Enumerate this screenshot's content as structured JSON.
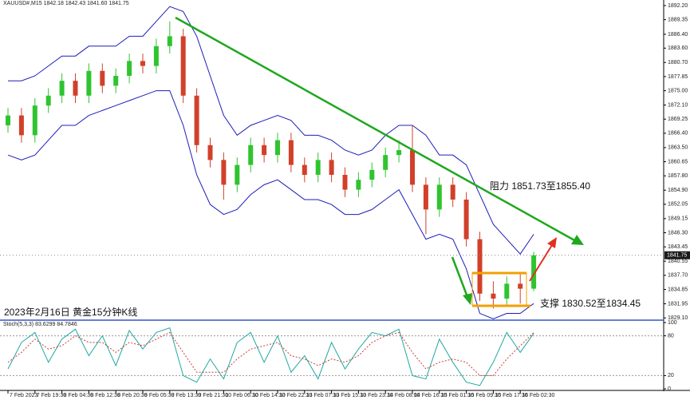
{
  "chart_data": [
    {
      "type": "candlestick",
      "title": "XAUUSD#,M15 1842.18 1842.43 1841.60 1841.75",
      "annotations": [
        "阻力 1851.73至1855.40",
        "支撑 1830.52至1834.45",
        "2023年2月16日 黄金15分钟K线"
      ],
      "open": [
        1868,
        1870,
        1866,
        1872,
        1874,
        1877,
        1874,
        1879,
        1876,
        1878,
        1881,
        1880,
        1884,
        1886,
        1874,
        1864,
        1861,
        1856,
        1860,
        1864,
        1862,
        1865,
        1860,
        1858,
        1861,
        1858,
        1855,
        1857,
        1859,
        1862,
        1863,
        1856,
        1851,
        1856,
        1853,
        1845,
        1834,
        1833,
        1836,
        1835
      ],
      "high": [
        1871.5,
        1871.5,
        1873.5,
        1875.5,
        1878.5,
        1878.5,
        1880.5,
        1880.5,
        1879.5,
        1882.5,
        1882.5,
        1885.5,
        1889,
        1887.5,
        1875.5,
        1865.5,
        1862.5,
        1861.5,
        1865.5,
        1865.5,
        1866.5,
        1866.5,
        1861.5,
        1862.5,
        1862.5,
        1859.5,
        1858.5,
        1860.5,
        1863.5,
        1865,
        1868,
        1857.5,
        1857.5,
        1857.5,
        1854.5,
        1846.5,
        1836.5,
        1837.5,
        1838,
        1842.43
      ],
      "low": [
        1866.5,
        1864.5,
        1864.5,
        1870.5,
        1872.5,
        1872.5,
        1872.5,
        1874.5,
        1874.5,
        1876.5,
        1878.5,
        1878.5,
        1882.5,
        1872.5,
        1862.5,
        1859.5,
        1853,
        1854.5,
        1858.5,
        1860.5,
        1860.5,
        1858.5,
        1856.5,
        1856.5,
        1856.5,
        1853.5,
        1853.5,
        1855.5,
        1857.5,
        1860.5,
        1854.5,
        1846,
        1849.5,
        1851.5,
        1843.5,
        1832.5,
        1831,
        1831.5,
        1832,
        1834.5
      ],
      "close": [
        1870,
        1866,
        1872,
        1874,
        1877,
        1874,
        1879,
        1876,
        1878,
        1881,
        1880,
        1884,
        1886,
        1874,
        1864,
        1861,
        1856,
        1860,
        1864,
        1862,
        1865,
        1860,
        1858,
        1861,
        1858,
        1855,
        1857,
        1859,
        1862,
        1863,
        1856,
        1851,
        1856,
        1853,
        1845,
        1834,
        1833,
        1836,
        1835,
        1841.75
      ],
      "band_upper": [
        1877,
        1877,
        1878,
        1880,
        1882,
        1882,
        1884,
        1884,
        1884,
        1886,
        1886,
        1889,
        1892,
        1891,
        1886,
        1878,
        1870,
        1866,
        1868,
        1869,
        1870,
        1869,
        1866,
        1866,
        1865,
        1863,
        1862,
        1863,
        1866,
        1868,
        1868,
        1866,
        1862,
        1862,
        1860,
        1854,
        1848,
        1845,
        1842,
        1846
      ],
      "band_lower": [
        1862,
        1861,
        1862,
        1865,
        1868,
        1868,
        1870,
        1871,
        1872,
        1873,
        1874,
        1875,
        1875,
        1868,
        1858,
        1852,
        1850,
        1851,
        1854,
        1856,
        1857,
        1855,
        1853,
        1853,
        1852,
        1850,
        1850,
        1851,
        1853,
        1855,
        1850,
        1845,
        1846,
        1845,
        1839,
        1830,
        1828.9,
        1830,
        1830,
        1832
      ],
      "up_color": "#2fc42f",
      "down_color": "#d2402a",
      "band_color": "#1c1cb8",
      "ylim": [
        1828.8,
        1893.0
      ],
      "yticks": [
        {
          "value": 1892.2,
          "label": "1892.20"
        },
        1889.35,
        {
          "value": 1886.4,
          "label": "1886.40"
        },
        {
          "value": 1883.6,
          "label": "1883.60"
        },
        {
          "value": 1880.7,
          "label": "1880.70"
        },
        1877.85,
        {
          "value": 1875,
          "label": "1875.00"
        },
        {
          "value": 1872.1,
          "label": "1872.10"
        },
        1869.25,
        {
          "value": 1866.4,
          "label": "1866.40"
        },
        {
          "value": 1863.5,
          "label": "1863.50"
        },
        1860.65,
        {
          "value": 1857.8,
          "label": "1857.80"
        },
        {
          "value": 1854.9,
          "label": "1854.90"
        },
        1852.05,
        1849.15,
        {
          "value": 1846.3,
          "label": "1846.30"
        },
        1843.45,
        1840.55,
        {
          "value": 1837.7,
          "label": "1837.70"
        },
        1834.85,
        1831.95,
        {
          "value": 1829.1,
          "label": "1829.10"
        }
      ],
      "xticks": [
        {
          "value": 0,
          "label": "7 Feb 2023"
        },
        {
          "value": 2,
          "label": "7 Feb 19:30"
        },
        {
          "value": 4,
          "label": "8 Feb 04:30"
        },
        {
          "value": 6,
          "label": "8 Feb 12:30"
        },
        {
          "value": 8,
          "label": "8 Feb 20:30"
        },
        {
          "value": 10,
          "label": "9 Feb 05:30"
        },
        {
          "value": 12,
          "label": "9 Feb 13:30"
        },
        {
          "value": 14,
          "label": "9 Feb 21:30"
        },
        {
          "value": 16,
          "label": "10 Feb 06:30"
        },
        {
          "value": 18,
          "label": "10 Feb 14:30"
        },
        {
          "value": 20,
          "label": "10 Feb 22:30"
        },
        {
          "value": 22,
          "label": "13 Feb 07:30"
        },
        {
          "value": 24,
          "label": "13 Feb 15:30"
        },
        {
          "value": 26,
          "label": "13 Feb 23:30"
        },
        {
          "value": 28,
          "label": "14 Feb 08:00"
        },
        {
          "value": 30,
          "label": "14 Feb 16:30"
        },
        {
          "value": 32,
          "label": "15 Feb 01:30"
        },
        {
          "value": 34,
          "label": "15 Feb 09:30"
        },
        {
          "value": 36,
          "label": "15 Feb 17:30"
        },
        {
          "value": 38,
          "label": "16 Feb 02:30"
        }
      ]
    },
    {
      "type": "line",
      "title": "Stoch(5,3,3) 83.6299 84.7846",
      "series": [
        {
          "color": "#20a8a0",
          "dash": false,
          "values": [
            30,
            70,
            85,
            40,
            75,
            90,
            50,
            80,
            35,
            88,
            60,
            85,
            92,
            20,
            10,
            45,
            15,
            70,
            85,
            40,
            80,
            25,
            50,
            15,
            70,
            30,
            60,
            85,
            80,
            90,
            20,
            15,
            75,
            40,
            10,
            5,
            40,
            85,
            55,
            83.6299
          ]
        },
        {
          "color": "#d03a3a",
          "dash": true,
          "values": [
            40,
            55,
            75,
            60,
            65,
            80,
            70,
            70,
            55,
            70,
            65,
            75,
            85,
            55,
            25,
            25,
            25,
            45,
            60,
            65,
            70,
            50,
            45,
            35,
            45,
            40,
            50,
            70,
            80,
            85,
            55,
            30,
            40,
            45,
            40,
            20,
            20,
            45,
            65,
            84.7846
          ]
        }
      ],
      "ylim": [
        0,
        100
      ],
      "yticks": [
        100,
        80,
        20,
        0
      ]
    }
  ]
}
